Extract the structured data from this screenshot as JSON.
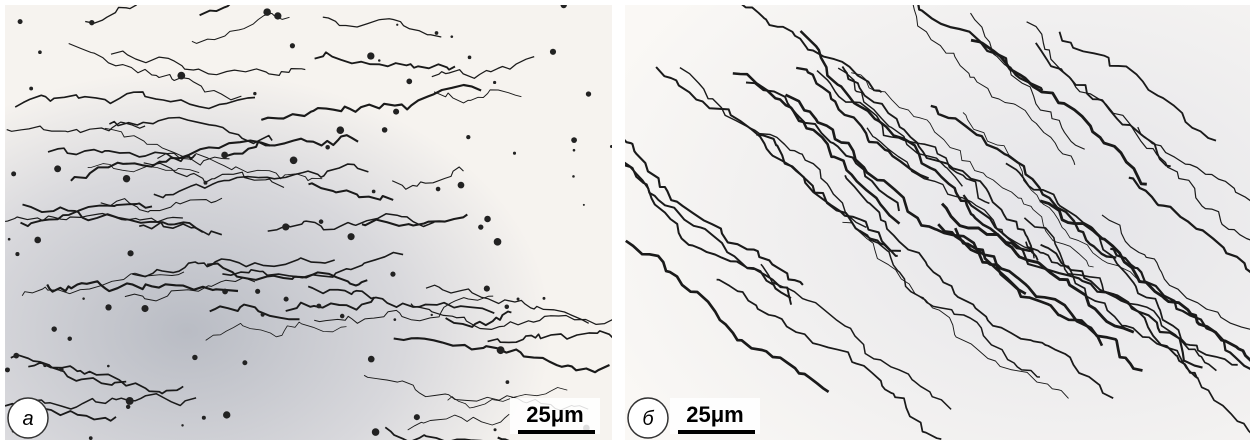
{
  "panels": [
    {
      "label": "а",
      "scale_bar": "25μm"
    },
    {
      "label": "б",
      "scale_bar": "25μm"
    }
  ]
}
